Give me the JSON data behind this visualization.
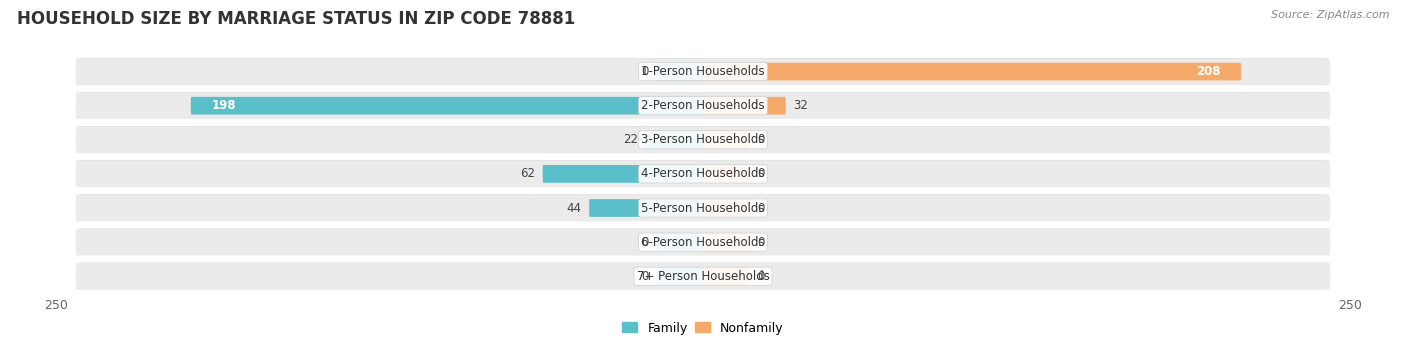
{
  "title": "HOUSEHOLD SIZE BY MARRIAGE STATUS IN ZIP CODE 78881",
  "source": "Source: ZipAtlas.com",
  "categories": [
    "1-Person Households",
    "2-Person Households",
    "3-Person Households",
    "4-Person Households",
    "5-Person Households",
    "6-Person Households",
    "7+ Person Households"
  ],
  "family_values": [
    0,
    198,
    22,
    62,
    44,
    0,
    0
  ],
  "nonfamily_values": [
    208,
    32,
    0,
    0,
    0,
    0,
    0
  ],
  "family_color": "#5BBFC9",
  "nonfamily_color": "#F5A96B",
  "row_bg_color": "#EBEBEB",
  "row_shadow_color": "#D5D5D5",
  "xlim": 250,
  "legend_family": "Family",
  "legend_nonfamily": "Nonfamily",
  "title_fontsize": 12,
  "source_fontsize": 8,
  "label_fontsize": 8.5,
  "axis_fontsize": 9,
  "bar_height": 0.52,
  "label_bg_color": "#FFFFFF",
  "stub_size": 18
}
